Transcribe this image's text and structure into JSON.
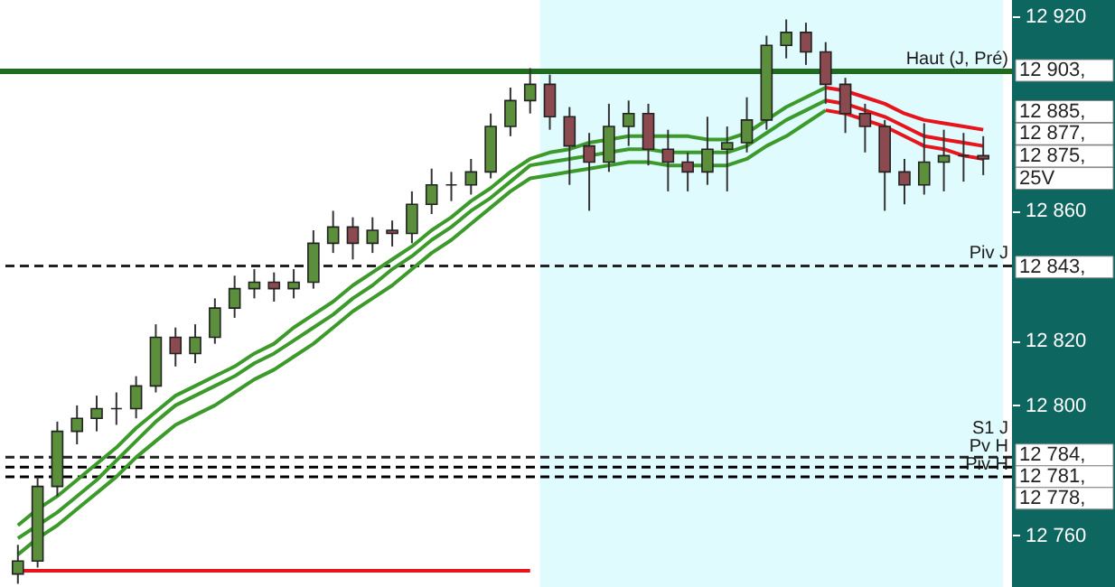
{
  "chart_data": {
    "type": "candlestick",
    "categories": [
      null,
      null,
      null,
      null,
      null,
      null,
      null,
      null,
      null,
      null,
      null,
      null,
      null,
      null,
      null,
      null,
      null,
      null,
      null,
      null,
      null,
      null,
      null,
      null,
      null,
      null,
      null,
      null,
      null,
      null,
      null,
      null,
      null,
      null,
      null,
      null,
      null,
      null,
      null,
      null,
      null,
      null,
      null,
      null,
      null,
      null,
      null,
      null,
      null,
      null
    ],
    "ohlc": [
      [
        12748,
        12757,
        12745,
        12752
      ],
      [
        12752,
        12778,
        12750,
        12775
      ],
      [
        12775,
        12795,
        12772,
        12792
      ],
      [
        12792,
        12800,
        12788,
        12796
      ],
      [
        12796,
        12803,
        12792,
        12799
      ],
      [
        12799,
        12804,
        12794,
        12799
      ],
      [
        12799,
        12809,
        12796,
        12806
      ],
      [
        12806,
        12825,
        12804,
        12821
      ],
      [
        12821,
        12824,
        12812,
        12816
      ],
      [
        12816,
        12825,
        12813,
        12821
      ],
      [
        12821,
        12833,
        12819,
        12830
      ],
      [
        12830,
        12840,
        12827,
        12836
      ],
      [
        12836,
        12842,
        12833,
        12838
      ],
      [
        12838,
        12841,
        12832,
        12836
      ],
      [
        12836,
        12842,
        12833,
        12838
      ],
      [
        12838,
        12854,
        12836,
        12850
      ],
      [
        12850,
        12860,
        12847,
        12855
      ],
      [
        12855,
        12858,
        12845,
        12850
      ],
      [
        12850,
        12858,
        12847,
        12854
      ],
      [
        12854,
        12857,
        12849,
        12853
      ],
      [
        12853,
        12866,
        12850,
        12862
      ],
      [
        12862,
        12873,
        12859,
        12868
      ],
      [
        12868,
        12872,
        12863,
        12868
      ],
      [
        12868,
        12876,
        12865,
        12872
      ],
      [
        12872,
        12890,
        12870,
        12886
      ],
      [
        12886,
        12898,
        12883,
        12894
      ],
      [
        12894,
        12904,
        12890,
        12899
      ],
      [
        12899,
        12902,
        12885,
        12889
      ],
      [
        12889,
        12892,
        12868,
        12880
      ],
      [
        12880,
        12884,
        12860,
        12875
      ],
      [
        12875,
        12893,
        12872,
        12886
      ],
      [
        12886,
        12894,
        12880,
        12890
      ],
      [
        12890,
        12893,
        12874,
        12879
      ],
      [
        12879,
        12885,
        12866,
        12875
      ],
      [
        12875,
        12878,
        12866,
        12872
      ],
      [
        12872,
        12889,
        12868,
        12879
      ],
      [
        12879,
        12886,
        12866,
        12881
      ],
      [
        12881,
        12895,
        12878,
        12888
      ],
      [
        12888,
        12914,
        12885,
        12911
      ],
      [
        12911,
        12919,
        12907,
        12915
      ],
      [
        12915,
        12918,
        12905,
        12909
      ],
      [
        12909,
        12912,
        12893,
        12899
      ],
      [
        12899,
        12901,
        12884,
        12890
      ],
      [
        12890,
        12893,
        12878,
        12886
      ],
      [
        12886,
        12888,
        12860,
        12872
      ],
      [
        12872,
        12876,
        12862,
        12868
      ],
      [
        12868,
        12887,
        12865,
        12875
      ],
      [
        12875,
        12885,
        12866,
        12877
      ],
      [
        12877,
        12884,
        12869,
        12877
      ],
      [
        12877,
        12883,
        12871,
        12876
      ]
    ],
    "series": [
      {
        "type": "line",
        "color": "#3c9a2a",
        "values": [
          12763,
          12768,
          12772,
          12777,
          12782,
          12787,
          12793,
          12798,
          12803,
          12806,
          12809,
          12812,
          12816,
          12819,
          12824,
          12828,
          12832,
          12837,
          12841,
          12845,
          12849,
          12854,
          12858,
          12863,
          12867,
          12872,
          12876,
          12878,
          12879,
          12881,
          12882,
          12883,
          12883,
          12883,
          12883,
          12882,
          12882,
          12884,
          12888,
          12892,
          12895,
          12898,
          null,
          null,
          null,
          null,
          null,
          null,
          null,
          null
        ]
      },
      {
        "type": "line",
        "color": "#3c9a2a",
        "values": [
          12759,
          12763,
          12767,
          12772,
          12777,
          12783,
          12789,
          12795,
          12800,
          12803,
          12806,
          12809,
          12813,
          12816,
          12820,
          12824,
          12828,
          12833,
          12837,
          12842,
          12846,
          12851,
          12855,
          12860,
          12864,
          12869,
          12874,
          12875,
          12876,
          12877,
          12878,
          12879,
          12879,
          12878,
          12878,
          12878,
          12878,
          12880,
          12884,
          12888,
          12891,
          12894,
          null,
          null,
          null,
          null,
          null,
          null,
          null,
          null
        ]
      },
      {
        "type": "line",
        "color": "#3c9a2a",
        "values": [
          12754,
          12759,
          12763,
          12768,
          12773,
          12778,
          12784,
          12789,
          12794,
          12797,
          12800,
          12804,
          12808,
          12811,
          12815,
          12819,
          12824,
          12829,
          12833,
          12837,
          12842,
          12847,
          12851,
          12856,
          12861,
          12866,
          12870,
          12871,
          12872,
          12873,
          12874,
          12875,
          12875,
          12874,
          12874,
          12874,
          12874,
          12876,
          12880,
          12883,
          12887,
          12891,
          null,
          null,
          null,
          null,
          null,
          null,
          null,
          null
        ]
      },
      {
        "type": "line",
        "color": "#e8141c",
        "values": [
          null,
          null,
          null,
          null,
          null,
          null,
          null,
          null,
          null,
          null,
          null,
          null,
          null,
          null,
          null,
          null,
          null,
          null,
          null,
          null,
          null,
          null,
          null,
          null,
          null,
          null,
          null,
          null,
          null,
          null,
          null,
          null,
          null,
          null,
          null,
          null,
          null,
          null,
          null,
          null,
          null,
          12898,
          12897,
          12895,
          12893,
          12890,
          12888,
          12887,
          12886,
          12885
        ]
      },
      {
        "type": "line",
        "color": "#e8141c",
        "values": [
          null,
          null,
          null,
          null,
          null,
          null,
          null,
          null,
          null,
          null,
          null,
          null,
          null,
          null,
          null,
          null,
          null,
          null,
          null,
          null,
          null,
          null,
          null,
          null,
          null,
          null,
          null,
          null,
          null,
          null,
          null,
          null,
          null,
          null,
          null,
          null,
          null,
          null,
          null,
          null,
          null,
          12894,
          12893,
          12891,
          12889,
          12886,
          12883,
          12882,
          12881,
          12880
        ]
      },
      {
        "type": "line",
        "color": "#e8141c",
        "values": [
          null,
          null,
          null,
          null,
          null,
          null,
          null,
          null,
          null,
          null,
          null,
          null,
          null,
          null,
          null,
          null,
          null,
          null,
          null,
          null,
          null,
          null,
          null,
          null,
          null,
          null,
          null,
          null,
          null,
          null,
          null,
          null,
          null,
          null,
          null,
          null,
          null,
          null,
          null,
          null,
          null,
          12891,
          12890,
          12888,
          12886,
          12883,
          12880,
          12879,
          12877,
          12876
        ]
      },
      {
        "type": "line",
        "color": "#e8141c",
        "values": [
          12749,
          12749,
          12749,
          12749,
          12749,
          12749,
          12749,
          12749,
          12749,
          12749,
          12749,
          12749,
          12749,
          12749,
          12749,
          12749,
          12749,
          12749,
          12749,
          12749,
          12749,
          12749,
          12749,
          12749,
          12749,
          12749,
          12749,
          null,
          null,
          null,
          null,
          null,
          null,
          null,
          null,
          null,
          null,
          null,
          null,
          null,
          null,
          null,
          null,
          null,
          null,
          null,
          null,
          null,
          null,
          null
        ]
      }
    ],
    "ref_lines": [
      {
        "axis": "y",
        "value": 12903,
        "label": "Haut (J, Pré)",
        "color": "#1f6b1f",
        "line_style": "solid"
      },
      {
        "axis": "y",
        "value": 12843,
        "label": "Piv J",
        "color": "#222222",
        "line_style": "dashed"
      },
      {
        "axis": "y",
        "value": 12784,
        "label": "S1 J",
        "color": "#222222",
        "line_style": "dashed"
      },
      {
        "axis": "y",
        "value": 12781,
        "label": "Pv H",
        "color": "#000000",
        "line_style": "dashed"
      },
      {
        "axis": "y",
        "value": 12778,
        "label": "Piv H",
        "color": "#000000",
        "line_style": "dashed"
      }
    ],
    "annotations": [
      "12 903,",
      "12 885,",
      "12 877,",
      "12 875,",
      "25V",
      "12 843,",
      "12 784,",
      "12 781,",
      "12 778,"
    ],
    "ylim": [
      12744,
      12925
    ],
    "yticks": [
      {
        "value": 12760,
        "label": "12 760"
      },
      {
        "value": 12800,
        "label": "12 800"
      },
      {
        "value": 12820,
        "label": "12 820"
      },
      {
        "value": 12860,
        "label": "12 860"
      },
      {
        "value": 12920,
        "label": "12 920"
      }
    ],
    "tick_labels": "y",
    "grid": false
  }
}
